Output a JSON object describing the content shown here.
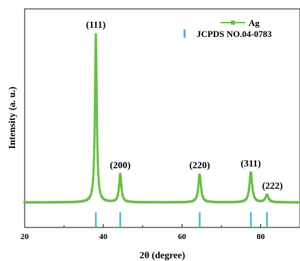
{
  "chart_data": {
    "type": "line",
    "title": "",
    "xlabel": "2θ (degree)",
    "ylabel": "Intensity (a. u.)",
    "xlim": [
      20,
      90
    ],
    "ylim": [
      0,
      1.0
    ],
    "xticks": [
      20,
      40,
      60,
      80
    ],
    "xtick_labels": [
      "20",
      "40",
      "60",
      "80"
    ],
    "y_ticks_shown": false,
    "grid": false,
    "legend_position": "top-right",
    "colors": {
      "series": "#6abf45",
      "reference": "#49b6cf"
    },
    "series": [
      {
        "name": "Ag",
        "baseline": 0.046,
        "peaks": [
          {
            "x": 38.1,
            "height": 0.9,
            "width": 0.28,
            "label": "(111)"
          },
          {
            "x": 44.3,
            "height": 0.15,
            "width": 0.35,
            "label": "(200)"
          },
          {
            "x": 64.5,
            "height": 0.15,
            "width": 0.4,
            "label": "(220)"
          },
          {
            "x": 77.5,
            "height": 0.16,
            "width": 0.42,
            "label": "(311)"
          },
          {
            "x": 81.6,
            "height": 0.04,
            "width": 0.45,
            "label": "(222)"
          }
        ]
      }
    ],
    "reference": {
      "name": "JCPDS NO.04-0783",
      "x": [
        38.1,
        44.3,
        64.5,
        77.5,
        81.6
      ]
    }
  }
}
